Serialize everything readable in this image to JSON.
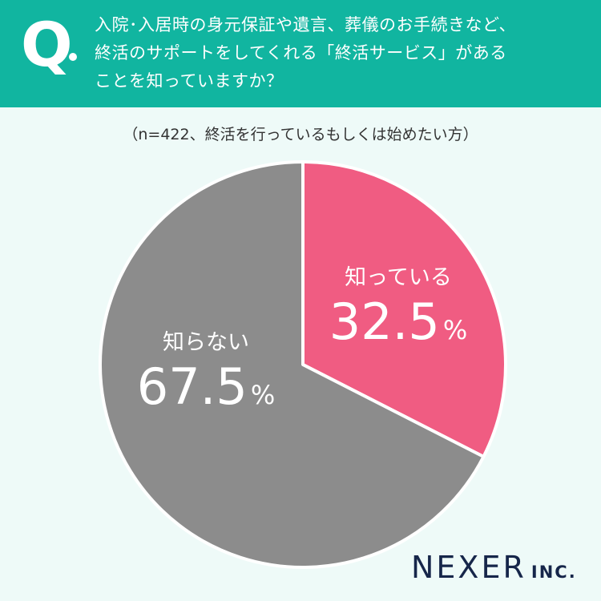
{
  "header": {
    "q_mark": "Q",
    "question": "入院･入居時の身元保証や遺言、葬儀のお手続きなど、\n終活のサポートをしてくれる「終活サービス」がある\nことを知っていますか？"
  },
  "note": "（n=422、終活を行っているもしくは始めたい方）",
  "chart_data": {
    "type": "pie",
    "categories": [
      "知っている",
      "知らない"
    ],
    "values": [
      32.5,
      67.5
    ],
    "value_labels": [
      "32.5",
      "67.5"
    ],
    "unit": "%",
    "colors": [
      "#f05c82",
      "#8c8c8c"
    ],
    "start": "12 o'clock, clockwise"
  },
  "logo": {
    "main": "NEXER",
    "suffix": "INC."
  }
}
